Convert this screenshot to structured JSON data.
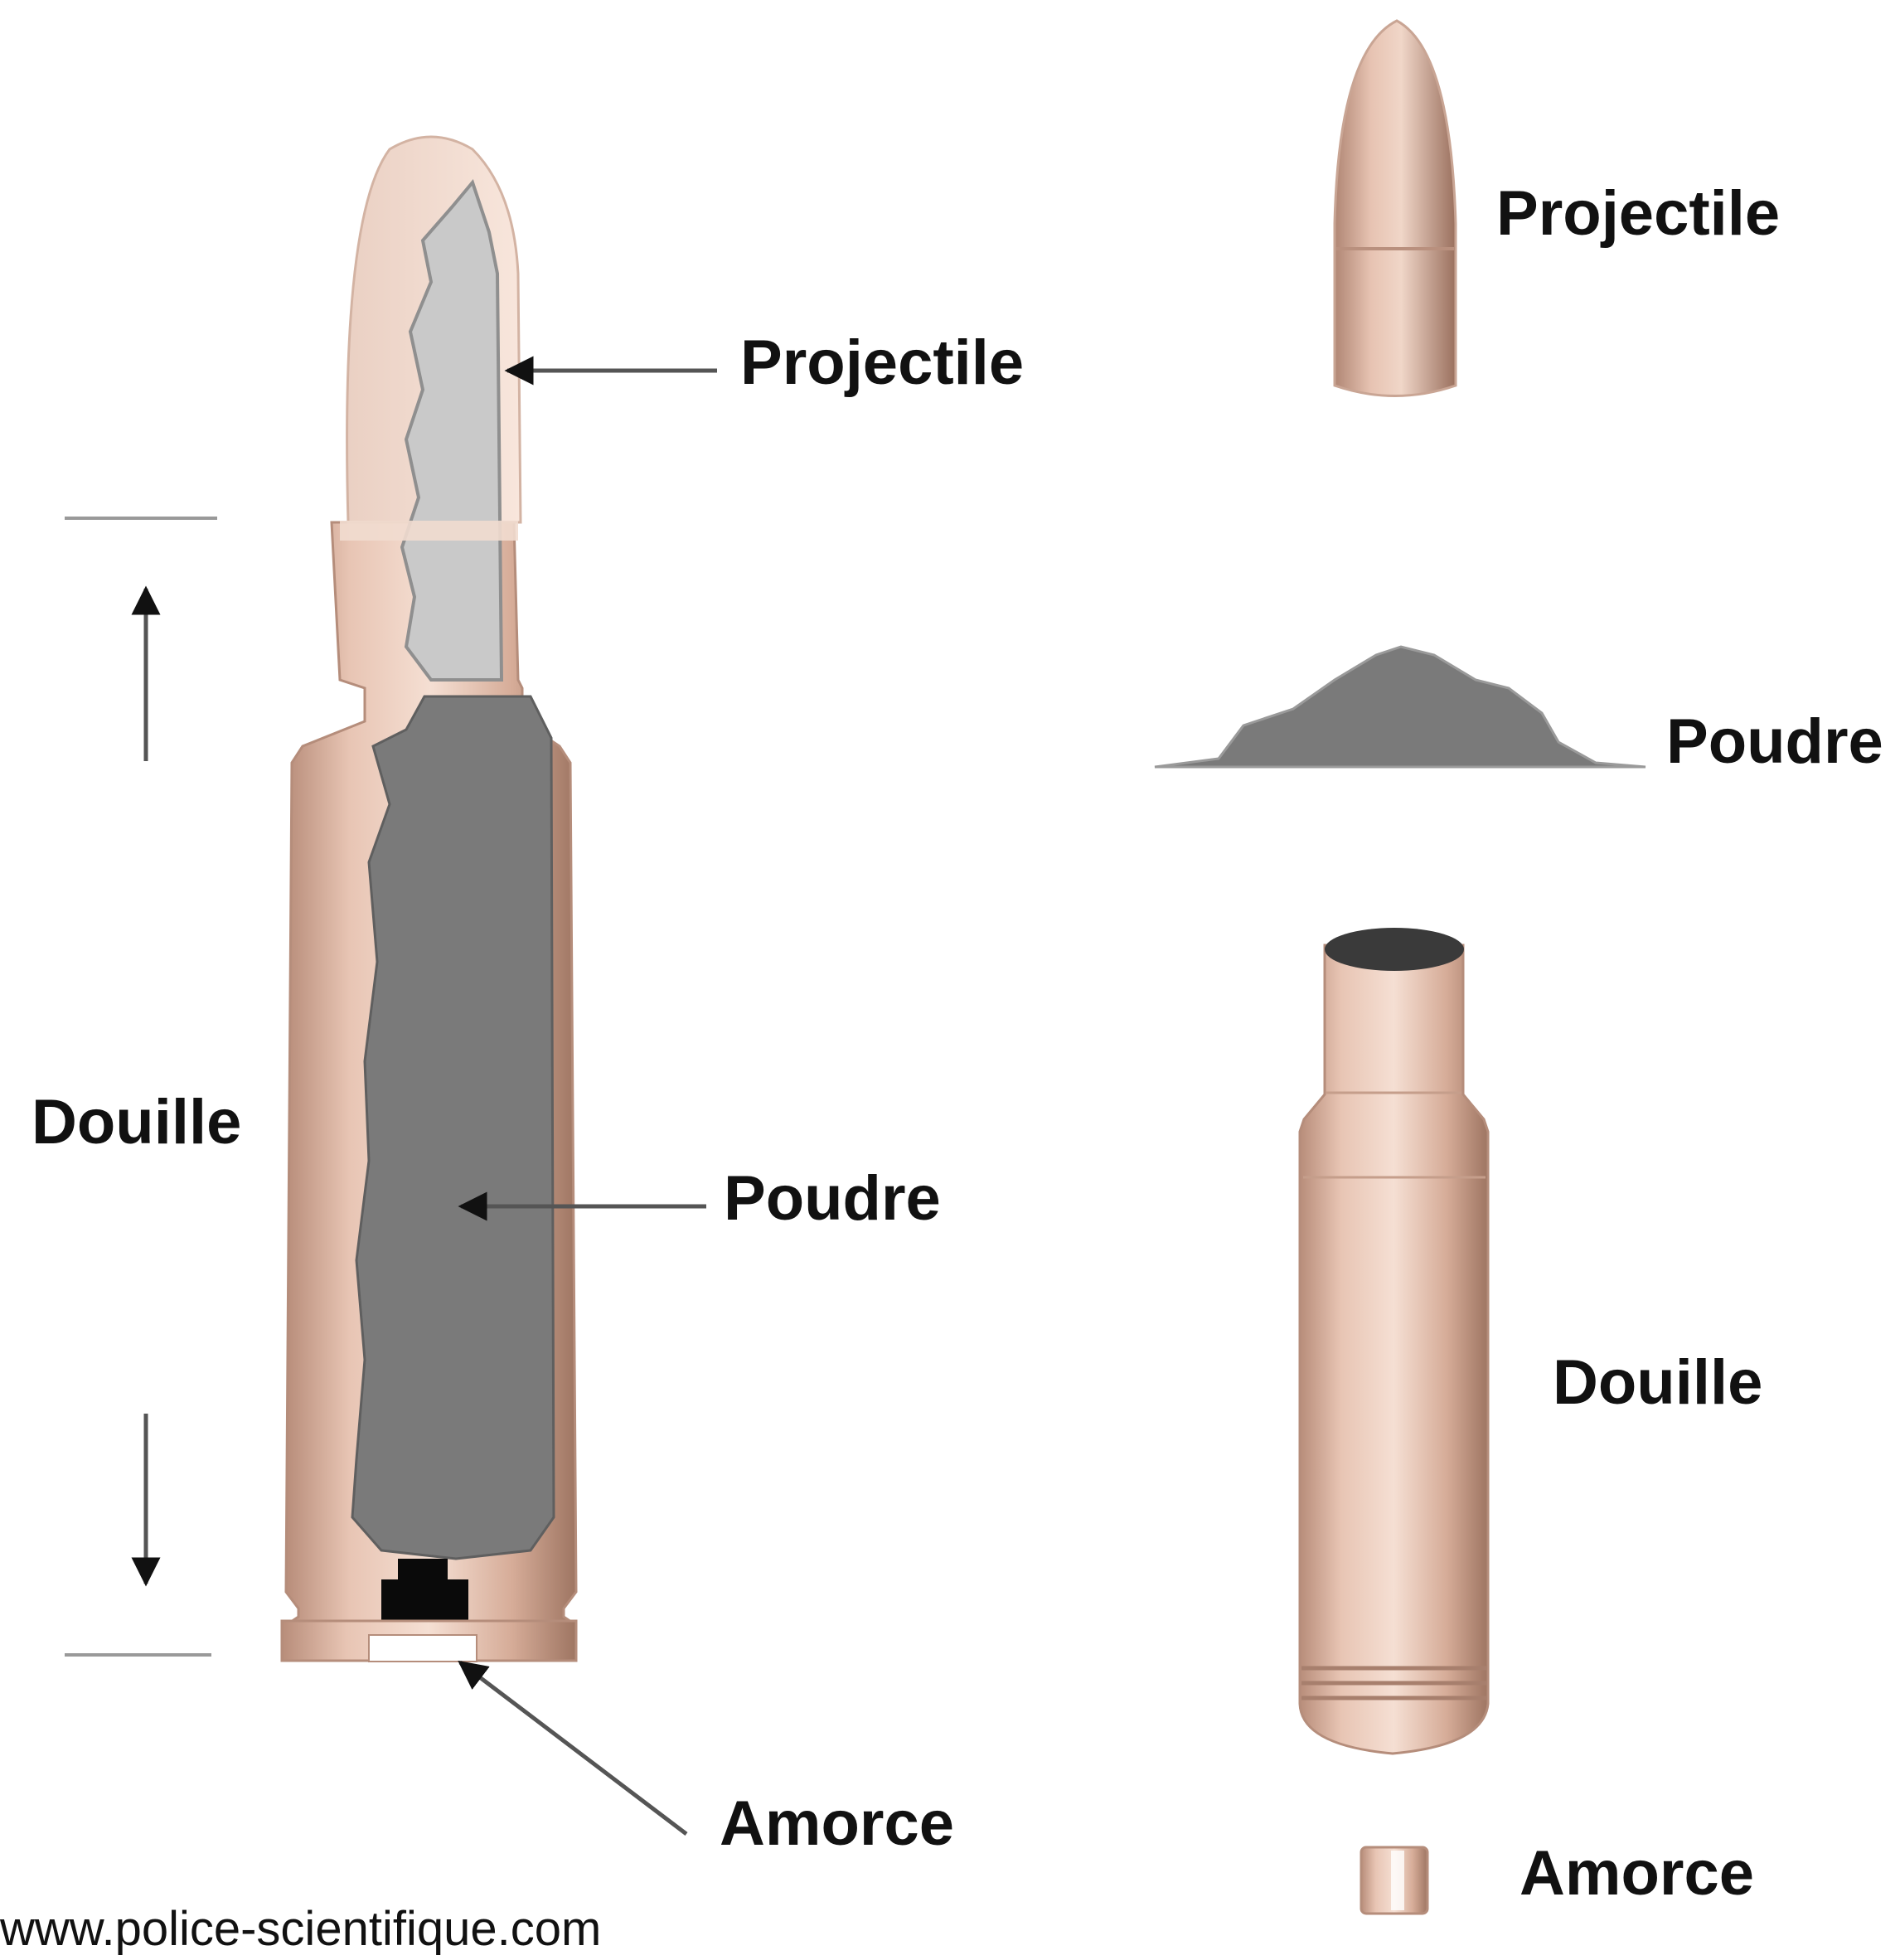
{
  "labels": {
    "cross_section": {
      "projectile": "Projectile",
      "poudre": "Poudre",
      "amorce": "Amorce",
      "douille": "Douille"
    },
    "exploded": {
      "projectile": "Projectile",
      "poudre": "Poudre",
      "douille": "Douille",
      "amorce": "Amorce"
    }
  },
  "source_url": "www.police-scientifique.com",
  "colors": {
    "brass": "#d9ad9a",
    "brass_light": "#f3ddd0",
    "brass_dark": "#a77f6d",
    "bullet_core": "#c9c9c9",
    "powder": "#7a7a7a",
    "primer": "#0a0a0a",
    "mouth": "#3a3a3a",
    "text": "#111111"
  }
}
